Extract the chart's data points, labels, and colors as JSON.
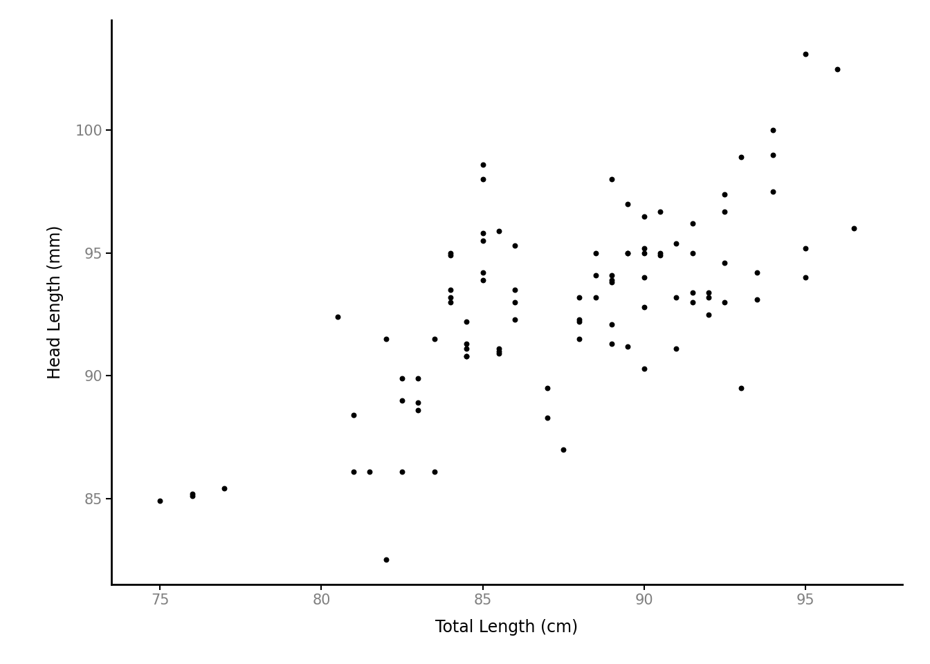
{
  "title": "",
  "xlabel": "Total Length (cm)",
  "ylabel": "Head Length (mm)",
  "x": [
    75.0,
    76.0,
    76.0,
    77.0,
    80.5,
    81.0,
    81.0,
    81.5,
    82.0,
    82.0,
    82.5,
    82.5,
    82.5,
    83.0,
    83.0,
    83.0,
    83.5,
    83.5,
    84.0,
    84.0,
    84.0,
    84.0,
    84.0,
    84.5,
    84.5,
    84.5,
    84.5,
    84.5,
    85.0,
    85.0,
    85.0,
    85.0,
    85.0,
    85.0,
    85.5,
    85.5,
    85.5,
    85.5,
    86.0,
    86.0,
    86.0,
    86.0,
    87.0,
    87.0,
    87.5,
    88.0,
    88.0,
    88.0,
    88.0,
    88.5,
    88.5,
    88.5,
    89.0,
    89.0,
    89.0,
    89.0,
    89.0,
    89.0,
    89.5,
    89.5,
    89.5,
    89.5,
    90.0,
    90.0,
    90.0,
    90.0,
    90.0,
    90.0,
    90.5,
    90.5,
    90.5,
    91.0,
    91.0,
    91.0,
    91.5,
    91.5,
    91.5,
    91.5,
    92.0,
    92.0,
    92.0,
    92.5,
    92.5,
    92.5,
    92.5,
    93.0,
    93.0,
    93.5,
    93.5,
    94.0,
    94.0,
    94.0,
    95.0,
    95.0,
    95.0,
    96.0,
    96.5
  ],
  "y": [
    84.9,
    85.2,
    85.1,
    85.4,
    92.4,
    88.4,
    86.1,
    86.1,
    82.5,
    91.5,
    89.0,
    89.9,
    86.1,
    89.9,
    88.9,
    88.6,
    91.5,
    86.1,
    94.9,
    95.0,
    93.5,
    93.0,
    93.2,
    91.1,
    92.2,
    90.8,
    91.3,
    90.8,
    98.6,
    95.5,
    95.8,
    98.0,
    93.9,
    94.2,
    95.9,
    91.1,
    91.0,
    90.9,
    93.5,
    93.0,
    95.3,
    92.3,
    88.3,
    89.5,
    87.0,
    93.2,
    91.5,
    92.3,
    92.2,
    95.0,
    94.1,
    93.2,
    98.0,
    94.1,
    93.8,
    93.9,
    92.1,
    91.3,
    95.0,
    95.0,
    97.0,
    91.2,
    96.5,
    95.2,
    95.0,
    94.0,
    92.8,
    90.3,
    96.7,
    95.0,
    94.9,
    95.4,
    93.2,
    91.1,
    96.2,
    93.4,
    93.0,
    95.0,
    93.2,
    92.5,
    93.4,
    97.4,
    93.0,
    96.7,
    94.6,
    89.5,
    98.9,
    94.2,
    93.1,
    99.0,
    97.5,
    100.0,
    103.1,
    95.2,
    94.0,
    102.5,
    96.0
  ],
  "xlim": [
    73.5,
    98.0
  ],
  "ylim": [
    81.5,
    104.5
  ],
  "xticks": [
    75,
    80,
    85,
    90,
    95
  ],
  "yticks": [
    85,
    90,
    95,
    100
  ],
  "point_color": "#000000",
  "point_size": 22,
  "background_color": "#ffffff",
  "spine_color": "#000000",
  "tick_label_color": "#7f7f7f",
  "axis_label_color": "#000000",
  "tick_label_fontsize": 15,
  "axis_label_fontsize": 17
}
